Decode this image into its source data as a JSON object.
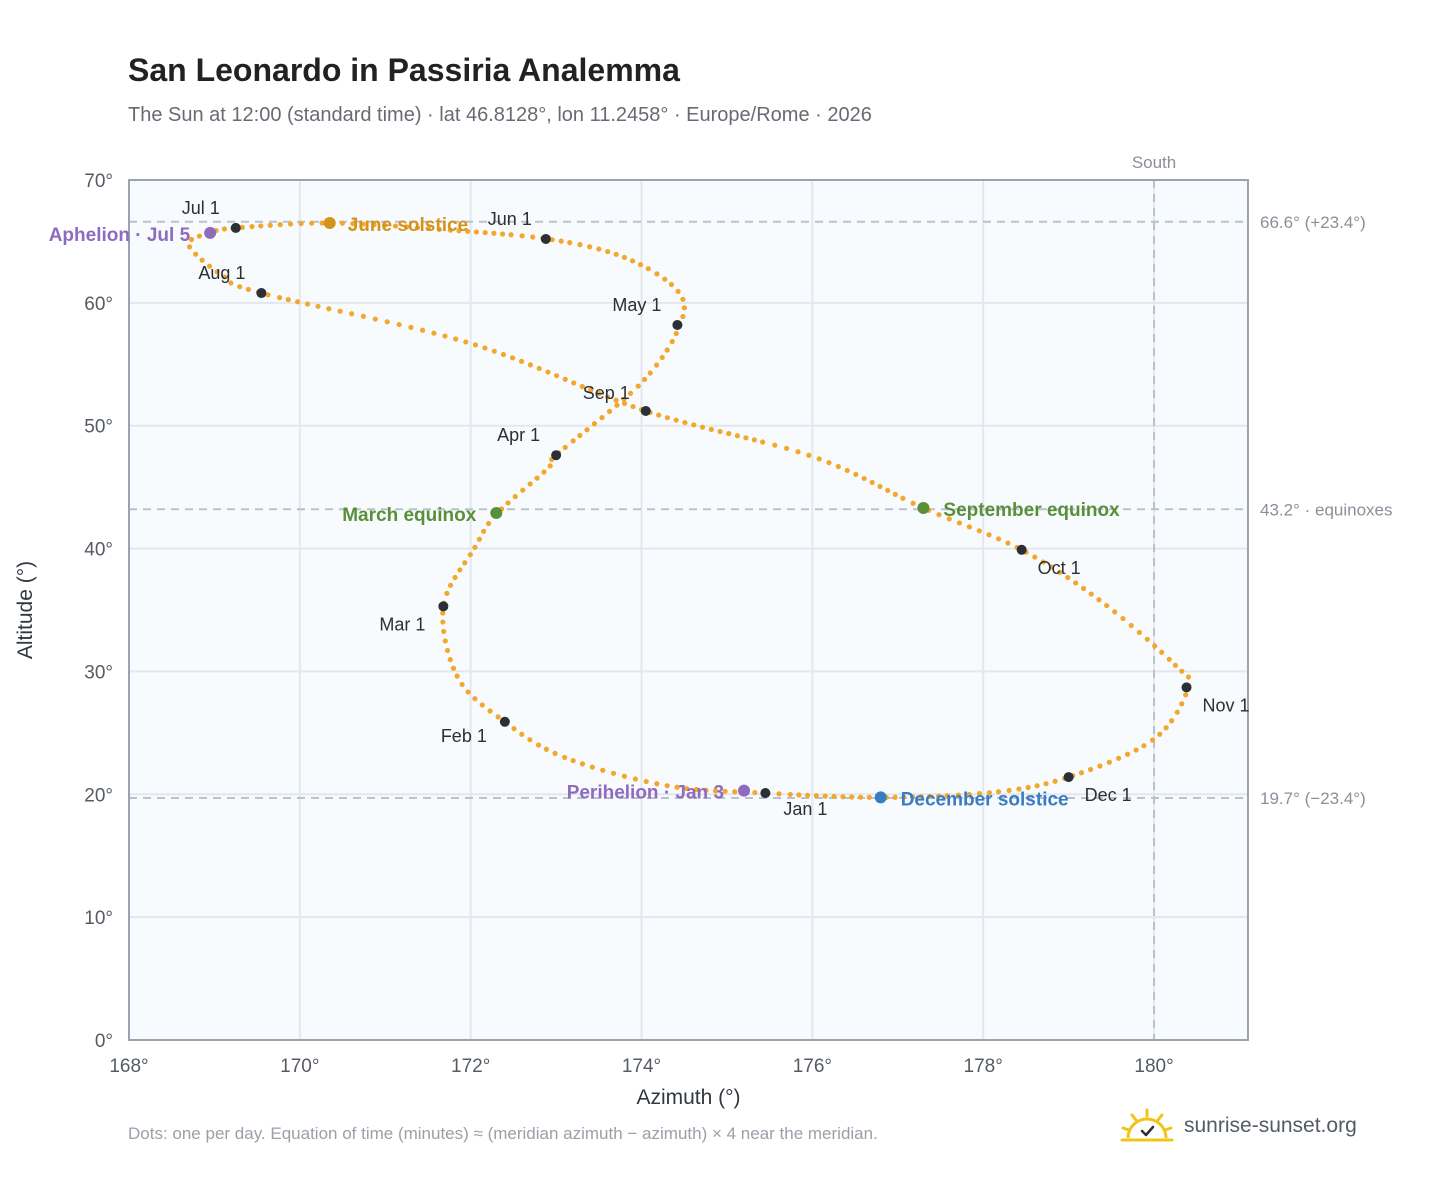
{
  "header": {
    "title": "San Leonardo in Passiria Analemma",
    "subtitle": "The Sun at 12:00 (standard time) · lat 46.8128°, lon 11.2458° · Europe/Rome · 2026"
  },
  "chart_data": {
    "type": "scatter",
    "xlabel": "Azimuth (°)",
    "ylabel": "Altitude (°)",
    "xlim": [
      168,
      181.1
    ],
    "ylim": [
      0,
      70
    ],
    "x_ticks": [
      "168°",
      "170°",
      "172°",
      "174°",
      "176°",
      "178°",
      "180°"
    ],
    "y_ticks": [
      "0°",
      "10°",
      "20°",
      "30°",
      "40°",
      "50°",
      "60°",
      "70°"
    ],
    "grid": true,
    "south_line": {
      "azimuth": 180,
      "label": "South"
    },
    "reference_lines": [
      {
        "altitude": 66.6,
        "label": "66.6° (+23.4°)"
      },
      {
        "altitude": 43.2,
        "label": "43.2° · equinoxes"
      },
      {
        "altitude": 19.7,
        "label": "19.7° (−23.4°)"
      }
    ],
    "analemma_path": [
      [
        175.45,
        20.1
      ],
      [
        174.3,
        20.7
      ],
      [
        173.1,
        23.0
      ],
      [
        172.4,
        25.9
      ],
      [
        171.85,
        29.5
      ],
      [
        171.68,
        35.3
      ],
      [
        172.05,
        40.1
      ],
      [
        172.3,
        42.8
      ],
      [
        172.9,
        46.5
      ],
      [
        173.0,
        47.6
      ],
      [
        174.0,
        53.5
      ],
      [
        174.45,
        58.2
      ],
      [
        174.42,
        61.0
      ],
      [
        173.8,
        63.7
      ],
      [
        172.9,
        65.2
      ],
      [
        171.6,
        66.0
      ],
      [
        170.35,
        66.5
      ],
      [
        169.25,
        66.1
      ],
      [
        168.95,
        65.7
      ],
      [
        168.7,
        64.7
      ],
      [
        169.1,
        62.2
      ],
      [
        169.55,
        60.8
      ],
      [
        172.0,
        56.7
      ],
      [
        174.05,
        51.2
      ],
      [
        176.0,
        47.5
      ],
      [
        177.3,
        43.3
      ],
      [
        178.45,
        39.9
      ],
      [
        179.4,
        35.6
      ],
      [
        180.25,
        30.5
      ],
      [
        180.4,
        28.7
      ],
      [
        180.0,
        24.5
      ],
      [
        179.0,
        21.4
      ],
      [
        178.1,
        20.15
      ],
      [
        176.8,
        19.75
      ],
      [
        175.45,
        20.1
      ]
    ],
    "month_markers": [
      {
        "label": "Jan 1",
        "az": 175.45,
        "alt": 20.1
      },
      {
        "label": "Feb 1",
        "az": 172.4,
        "alt": 25.9
      },
      {
        "label": "Mar 1",
        "az": 171.68,
        "alt": 35.3
      },
      {
        "label": "Apr 1",
        "az": 173.0,
        "alt": 47.6
      },
      {
        "label": "May 1",
        "az": 174.42,
        "alt": 58.2
      },
      {
        "label": "Jun 1",
        "az": 172.88,
        "alt": 65.2
      },
      {
        "label": "Jul 1",
        "az": 169.25,
        "alt": 66.1
      },
      {
        "label": "Aug 1",
        "az": 169.55,
        "alt": 60.8
      },
      {
        "label": "Sep 1",
        "az": 174.05,
        "alt": 51.2
      },
      {
        "label": "Oct 1",
        "az": 178.45,
        "alt": 39.9
      },
      {
        "label": "Nov 1",
        "az": 180.38,
        "alt": 28.7
      },
      {
        "label": "Dec 1",
        "az": 179.0,
        "alt": 21.4
      }
    ],
    "events": [
      {
        "label": "June solstice",
        "az": 170.35,
        "alt": 66.5,
        "color": "#d4941c"
      },
      {
        "label": "Aphelion · Jul 5",
        "az": 168.95,
        "alt": 65.7,
        "color": "#8e6bbf"
      },
      {
        "label": "March equinox",
        "az": 172.3,
        "alt": 42.9,
        "color": "#5a8f3a"
      },
      {
        "label": "September equinox",
        "az": 177.3,
        "alt": 43.3,
        "color": "#5a8f3a"
      },
      {
        "label": "December solstice",
        "az": 176.8,
        "alt": 19.75,
        "color": "#3a7cc4"
      },
      {
        "label": "Perihelion · Jan 3",
        "az": 175.2,
        "alt": 20.3,
        "color": "#8e6bbf"
      }
    ],
    "colors": {
      "path": "#f2a72d",
      "marker": "#2b2f36",
      "plot_background": "#f8fbfd",
      "grid": "#e3e8ee",
      "frame": "#9aa3b2",
      "reference": "#b8c2ce"
    }
  },
  "footer": {
    "note": "Dots: one per day. Equation of time (minutes) ≈ (meridian azimuth − azimuth) × 4 near the meridian.",
    "brand": "sunrise-sunset.org"
  }
}
